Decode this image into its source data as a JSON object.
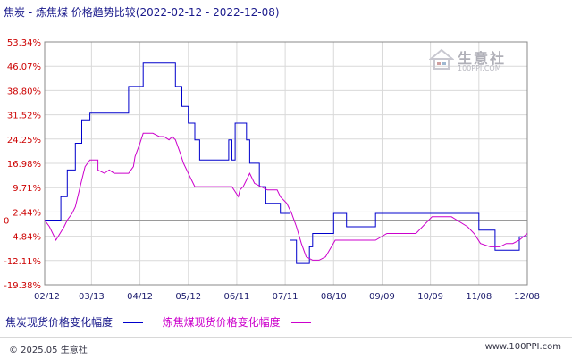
{
  "title": "焦炭 - 炼焦煤 价格趋势比较(2022-02-12 - 2022-12-08)",
  "watermark": {
    "name": "生意社",
    "url": "100PPI.COM"
  },
  "footer": {
    "copyright": "© 2025.05 生意社",
    "site": "www.100PPI.com"
  },
  "colors": {
    "series1": "#0000cc",
    "series2": "#cc00cc",
    "axis_text": "#cc0000",
    "grid": "#d9d9d9"
  },
  "chart_data": {
    "type": "line",
    "y_ticks": [
      "53.34%",
      "46.07%",
      "38.80%",
      "31.52%",
      "24.25%",
      "16.98%",
      "9.71%",
      "2.44%",
      "-4.84%",
      "-12.11%",
      "-19.38%"
    ],
    "y_tick_values": [
      53.34,
      46.07,
      38.8,
      31.52,
      24.25,
      16.98,
      9.71,
      2.44,
      -4.84,
      -12.11,
      -19.38
    ],
    "ylim": [
      -19.38,
      53.34
    ],
    "zero_label": "0",
    "x_ticks": [
      "02/12",
      "03/13",
      "04/12",
      "05/12",
      "06/11",
      "07/11",
      "08/10",
      "09/09",
      "10/09",
      "11/08",
      "12/08"
    ],
    "x_tick_values": [
      0,
      29,
      59,
      89,
      119,
      149,
      179,
      209,
      239,
      269,
      299
    ],
    "xlim": [
      0,
      299
    ],
    "grid": true,
    "legend_position": "bottom",
    "series": [
      {
        "name": "焦炭现货价格变化幅度",
        "x": [
          0,
          10,
          10,
          14,
          14,
          19,
          19,
          23,
          23,
          28,
          28,
          33,
          33,
          37,
          37,
          52,
          52,
          56,
          56,
          61,
          61,
          81,
          81,
          85,
          85,
          89,
          89,
          93,
          93,
          96,
          96,
          102,
          102,
          108,
          108,
          114,
          114,
          116,
          116,
          118,
          118,
          125,
          125,
          127,
          127,
          129,
          129,
          133,
          133,
          137,
          137,
          146,
          146,
          152,
          152,
          156,
          156,
          160,
          160,
          164,
          164,
          166,
          166,
          168,
          168,
          179,
          179,
          183,
          183,
          187,
          187,
          193,
          193,
          197,
          197,
          205,
          205,
          240,
          240,
          252,
          252,
          262,
          262,
          269,
          269,
          279,
          279,
          285,
          285,
          294,
          294,
          299
        ],
        "y": [
          0,
          0,
          7,
          7,
          15,
          15,
          23,
          23,
          30,
          30,
          32,
          32,
          32,
          32,
          32,
          32,
          40,
          40,
          40,
          40,
          47,
          47,
          40,
          40,
          34,
          34,
          29,
          29,
          24,
          24,
          18,
          18,
          18,
          18,
          18,
          18,
          24,
          24,
          18,
          18,
          29,
          29,
          24,
          24,
          17,
          17,
          17,
          17,
          10,
          10,
          5,
          5,
          2,
          2,
          -6,
          -6,
          -13,
          -13,
          -13,
          -13,
          -8,
          -8,
          -4,
          -4,
          -4,
          -4,
          2,
          2,
          2,
          2,
          -2,
          -2,
          -2,
          -2,
          -2,
          -2,
          2,
          2,
          2,
          2,
          2,
          2,
          2,
          2,
          -3,
          -3,
          -9,
          -9,
          -9,
          -9,
          -5,
          -5
        ]
      },
      {
        "name": "炼焦煤现货价格变化幅度",
        "x": [
          0,
          3,
          7,
          12,
          14,
          17,
          19,
          21,
          23,
          25,
          28,
          33,
          33,
          37,
          40,
          43,
          49,
          52,
          55,
          56,
          59,
          61,
          64,
          67,
          71,
          74,
          77,
          79,
          81,
          84,
          86,
          88,
          90,
          93,
          96,
          100,
          104,
          108,
          112,
          116,
          120,
          121,
          123,
          125,
          127,
          130,
          134,
          138,
          144,
          146,
          150,
          153,
          156,
          159,
          162,
          166,
          170,
          174,
          180,
          190,
          205,
          212,
          214,
          230,
          240,
          252,
          262,
          266,
          270,
          276,
          282,
          286,
          290,
          294,
          299
        ],
        "y": [
          0,
          -2,
          -6,
          -2,
          0,
          2,
          4,
          8,
          12,
          16,
          18,
          18,
          15,
          14,
          15,
          14,
          14,
          14,
          16,
          19,
          23,
          26,
          26,
          26,
          25,
          25,
          24,
          25,
          24,
          20,
          17,
          15,
          13,
          10,
          10,
          10,
          10,
          10,
          10,
          10,
          7,
          9,
          10,
          12,
          14,
          11,
          10,
          9,
          9,
          7,
          5,
          2,
          -2,
          -7,
          -11,
          -12,
          -12,
          -11,
          -6,
          -6,
          -6,
          -4,
          -4,
          -4,
          1,
          1,
          -2,
          -4,
          -7,
          -8,
          -8,
          -7,
          -7,
          -6,
          -4
        ]
      }
    ]
  }
}
